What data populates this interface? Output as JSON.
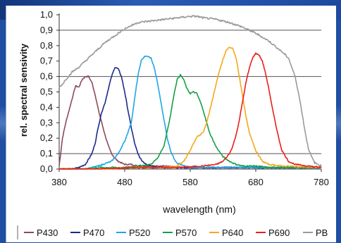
{
  "colors": {
    "background": "#1f4ea3",
    "panel": "#ffffff"
  },
  "chart_data": {
    "type": "line",
    "title": "",
    "xlabel": "wavelength (nm)",
    "ylabel": "rel. spectral sensivity",
    "xlim": [
      380,
      780
    ],
    "ylim": [
      0,
      1.0
    ],
    "x_ticks": [
      "380",
      "480",
      "580",
      "680",
      "780"
    ],
    "y_ticks": [
      "0,0",
      "0,1",
      "0,2",
      "0,3",
      "0,4",
      "0,5",
      "0,6",
      "0,7",
      "0,8",
      "0,9",
      "1,0"
    ],
    "grid": "horizontal major lines at 0.1, 0.6, 0.9",
    "legend_position": "bottom",
    "series": [
      {
        "name": "P430",
        "color": "#8b4a5e",
        "x": [
          380,
          385,
          390,
          395,
          400,
          405,
          410,
          415,
          420,
          425,
          430,
          435,
          440,
          445,
          450,
          455,
          460,
          465,
          470,
          480,
          490,
          500,
          520,
          540,
          560,
          600,
          650,
          700,
          750,
          780
        ],
        "values": [
          0.02,
          0.2,
          0.3,
          0.38,
          0.46,
          0.54,
          0.53,
          0.58,
          0.6,
          0.6,
          0.56,
          0.48,
          0.38,
          0.3,
          0.22,
          0.15,
          0.1,
          0.07,
          0.05,
          0.03,
          0.03,
          0.02,
          0.02,
          0.02,
          0.01,
          0.01,
          0.01,
          0.01,
          0.01,
          0.01
        ]
      },
      {
        "name": "P470",
        "color": "#1c2a8c",
        "x": [
          380,
          400,
          410,
          420,
          430,
          435,
          440,
          445,
          450,
          455,
          460,
          465,
          470,
          475,
          480,
          485,
          490,
          495,
          500,
          505,
          510,
          520,
          540,
          560,
          600,
          650,
          700,
          750,
          780
        ],
        "values": [
          0.0,
          0.0,
          0.01,
          0.03,
          0.1,
          0.17,
          0.28,
          0.37,
          0.43,
          0.52,
          0.6,
          0.66,
          0.65,
          0.6,
          0.5,
          0.38,
          0.27,
          0.17,
          0.1,
          0.06,
          0.04,
          0.02,
          0.01,
          0.01,
          0.01,
          0.01,
          0.01,
          0.01,
          0.01
        ]
      },
      {
        "name": "P520",
        "color": "#1ea6e6",
        "x": [
          380,
          400,
          420,
          440,
          460,
          470,
          480,
          490,
          495,
          500,
          505,
          510,
          515,
          520,
          525,
          530,
          535,
          540,
          545,
          550,
          555,
          560,
          570,
          580,
          600,
          650,
          700,
          750,
          780
        ],
        "values": [
          0.0,
          0.0,
          0.0,
          0.02,
          0.05,
          0.1,
          0.18,
          0.3,
          0.45,
          0.6,
          0.7,
          0.73,
          0.73,
          0.72,
          0.66,
          0.56,
          0.44,
          0.32,
          0.2,
          0.12,
          0.07,
          0.04,
          0.02,
          0.01,
          0.01,
          0.01,
          0.01,
          0.01,
          0.01
        ]
      },
      {
        "name": "P570",
        "color": "#15a047",
        "x": [
          380,
          400,
          420,
          440,
          460,
          480,
          500,
          520,
          530,
          540,
          550,
          555,
          560,
          565,
          570,
          575,
          580,
          585,
          590,
          595,
          600,
          605,
          610,
          620,
          630,
          640,
          650,
          660,
          680,
          700,
          740,
          780
        ],
        "values": [
          0.0,
          0.0,
          0.0,
          0.01,
          0.01,
          0.01,
          0.02,
          0.03,
          0.07,
          0.15,
          0.35,
          0.48,
          0.58,
          0.61,
          0.58,
          0.52,
          0.49,
          0.5,
          0.49,
          0.44,
          0.38,
          0.3,
          0.23,
          0.14,
          0.08,
          0.05,
          0.03,
          0.02,
          0.02,
          0.01,
          0.01,
          0.01
        ]
      },
      {
        "name": "P640",
        "color": "#f5a81a",
        "x": [
          380,
          440,
          500,
          540,
          560,
          570,
          580,
          590,
          595,
          600,
          605,
          610,
          615,
          620,
          625,
          630,
          635,
          640,
          645,
          650,
          655,
          660,
          665,
          670,
          680,
          690,
          700,
          720,
          780
        ],
        "values": [
          0.0,
          0.0,
          0.01,
          0.01,
          0.02,
          0.05,
          0.12,
          0.21,
          0.22,
          0.24,
          0.3,
          0.38,
          0.47,
          0.56,
          0.64,
          0.71,
          0.77,
          0.79,
          0.78,
          0.72,
          0.6,
          0.47,
          0.34,
          0.24,
          0.12,
          0.05,
          0.03,
          0.02,
          0.01
        ]
      },
      {
        "name": "P690",
        "color": "#e8201a",
        "x": [
          380,
          440,
          500,
          560,
          600,
          620,
          630,
          640,
          645,
          650,
          655,
          660,
          665,
          670,
          675,
          680,
          685,
          690,
          695,
          700,
          705,
          710,
          715,
          720,
          730,
          740,
          760,
          780
        ],
        "values": [
          0.0,
          0.0,
          0.01,
          0.01,
          0.02,
          0.03,
          0.05,
          0.1,
          0.15,
          0.22,
          0.32,
          0.44,
          0.56,
          0.65,
          0.72,
          0.75,
          0.74,
          0.7,
          0.62,
          0.52,
          0.4,
          0.3,
          0.2,
          0.12,
          0.05,
          0.03,
          0.02,
          0.01
        ]
      },
      {
        "name": "PB",
        "color": "#9a9a9a",
        "x": [
          380,
          385,
          390,
          400,
          410,
          420,
          430,
          440,
          450,
          460,
          470,
          480,
          490,
          500,
          520,
          540,
          560,
          580,
          590,
          600,
          620,
          640,
          660,
          680,
          700,
          720,
          730,
          740,
          745,
          750,
          755,
          760,
          765,
          770,
          780
        ],
        "values": [
          0.53,
          0.55,
          0.58,
          0.63,
          0.66,
          0.7,
          0.74,
          0.78,
          0.82,
          0.85,
          0.88,
          0.91,
          0.93,
          0.95,
          0.96,
          0.97,
          0.98,
          0.99,
          0.99,
          0.98,
          0.97,
          0.95,
          0.92,
          0.88,
          0.83,
          0.76,
          0.72,
          0.6,
          0.5,
          0.38,
          0.25,
          0.14,
          0.08,
          0.04,
          0.02
        ]
      }
    ]
  }
}
